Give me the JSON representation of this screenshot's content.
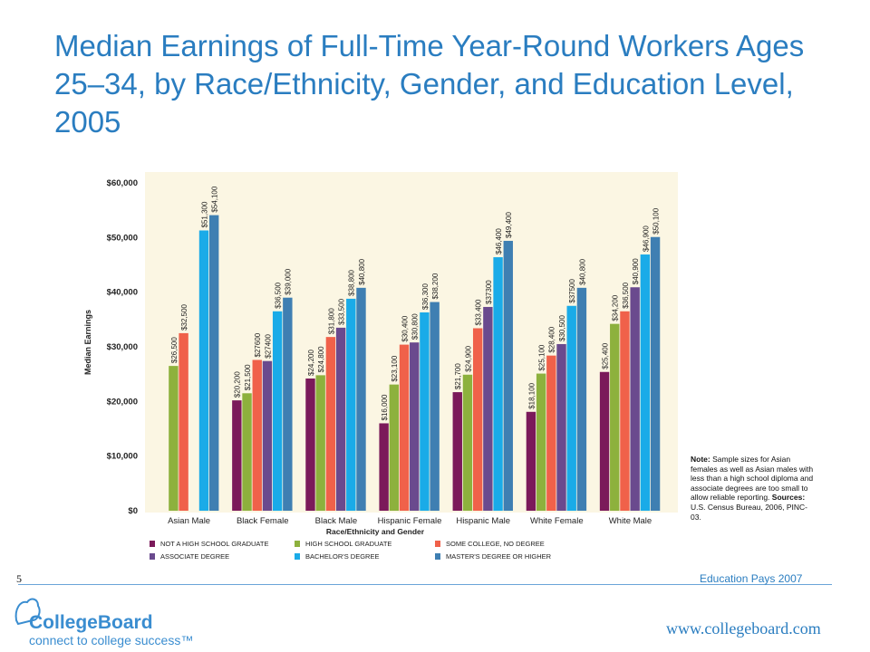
{
  "title": "Median Earnings of Full-Time Year-Round Workers Ages 25–34, by Race/Ethnicity, Gender, and Education Level, 2005",
  "note": {
    "note_label": "Note:",
    "note_text": "Sample sizes for Asian females as well as Asian males with less than a high school diploma and associate degrees are too small to allow reliable reporting.",
    "sources_label": "Sources:",
    "sources_text": "U.S. Census Bureau, 2006, PINC-03."
  },
  "footer": {
    "slide_number": "5",
    "publication": "Education Pays 2007",
    "website": "www.collegeboard.com",
    "logo_text": "CollegeBoard",
    "logo_tagline": "connect to college success™"
  },
  "colors": {
    "title": "#2a7dc0",
    "plot_bg": "#fbf6e3",
    "series": [
      "#7b1a5a",
      "#8db13d",
      "#f0614a",
      "#6a4a8e",
      "#1aabe8",
      "#3f7fb2"
    ]
  },
  "chart_data": {
    "type": "bar",
    "xlabel": "Race/Ethnicity and Gender",
    "ylabel": "Median Earnings",
    "ylim": [
      0,
      60000
    ],
    "grid": false,
    "legend_position": "bottom",
    "yticks": [
      "$0",
      "$10,000",
      "$20,000",
      "$30,000",
      "$40,000",
      "$50,000",
      "$60,000"
    ],
    "categories": [
      "Asian Male",
      "Black Female",
      "Black Male",
      "Hispanic Female",
      "Hispanic Male",
      "White Female",
      "White Male"
    ],
    "series": [
      {
        "name": "NOT A HIGH SCHOOL GRADUATE",
        "values": [
          null,
          20200,
          24200,
          16000,
          21700,
          18100,
          25400
        ],
        "labels": [
          "",
          "$20,200",
          "$24,200",
          "$16,000",
          "$21,700",
          "$18,100",
          "$25,400"
        ]
      },
      {
        "name": "HIGH SCHOOL GRADUATE",
        "values": [
          26500,
          21500,
          24800,
          23100,
          24900,
          25100,
          34200
        ],
        "labels": [
          "$26,500",
          "$21,500",
          "$24,800",
          "$23,100",
          "$24,900",
          "$25,100",
          "$34,200"
        ]
      },
      {
        "name": "SOME COLLEGE, NO DEGREE",
        "values": [
          32500,
          27600,
          31800,
          30400,
          33400,
          28400,
          36500
        ],
        "labels": [
          "$32,500",
          "$27600",
          "$31,800",
          "$30,400",
          "$33,400",
          "$28,400",
          "$36,500"
        ]
      },
      {
        "name": "ASSOCIATE DEGREE",
        "values": [
          null,
          27400,
          33500,
          30800,
          37300,
          30500,
          40900
        ],
        "labels": [
          "",
          "$27400",
          "$33,500",
          "$30,800",
          "$37300",
          "$30,500",
          "$40,900"
        ]
      },
      {
        "name": "BACHELOR'S DEGREE",
        "values": [
          51300,
          36500,
          38800,
          36300,
          46400,
          37500,
          46900
        ],
        "labels": [
          "$51,300",
          "$36,500",
          "$38,800",
          "$36,300",
          "$46,400",
          "$37500",
          "$46,900"
        ]
      },
      {
        "name": "MASTER'S DEGREE OR HIGHER",
        "values": [
          54100,
          39000,
          40800,
          38200,
          49400,
          40800,
          50100
        ],
        "labels": [
          "$54,100",
          "$39,000",
          "$40,800",
          "$38,200",
          "$49,400",
          "$40,800",
          "$50,100"
        ]
      }
    ]
  }
}
